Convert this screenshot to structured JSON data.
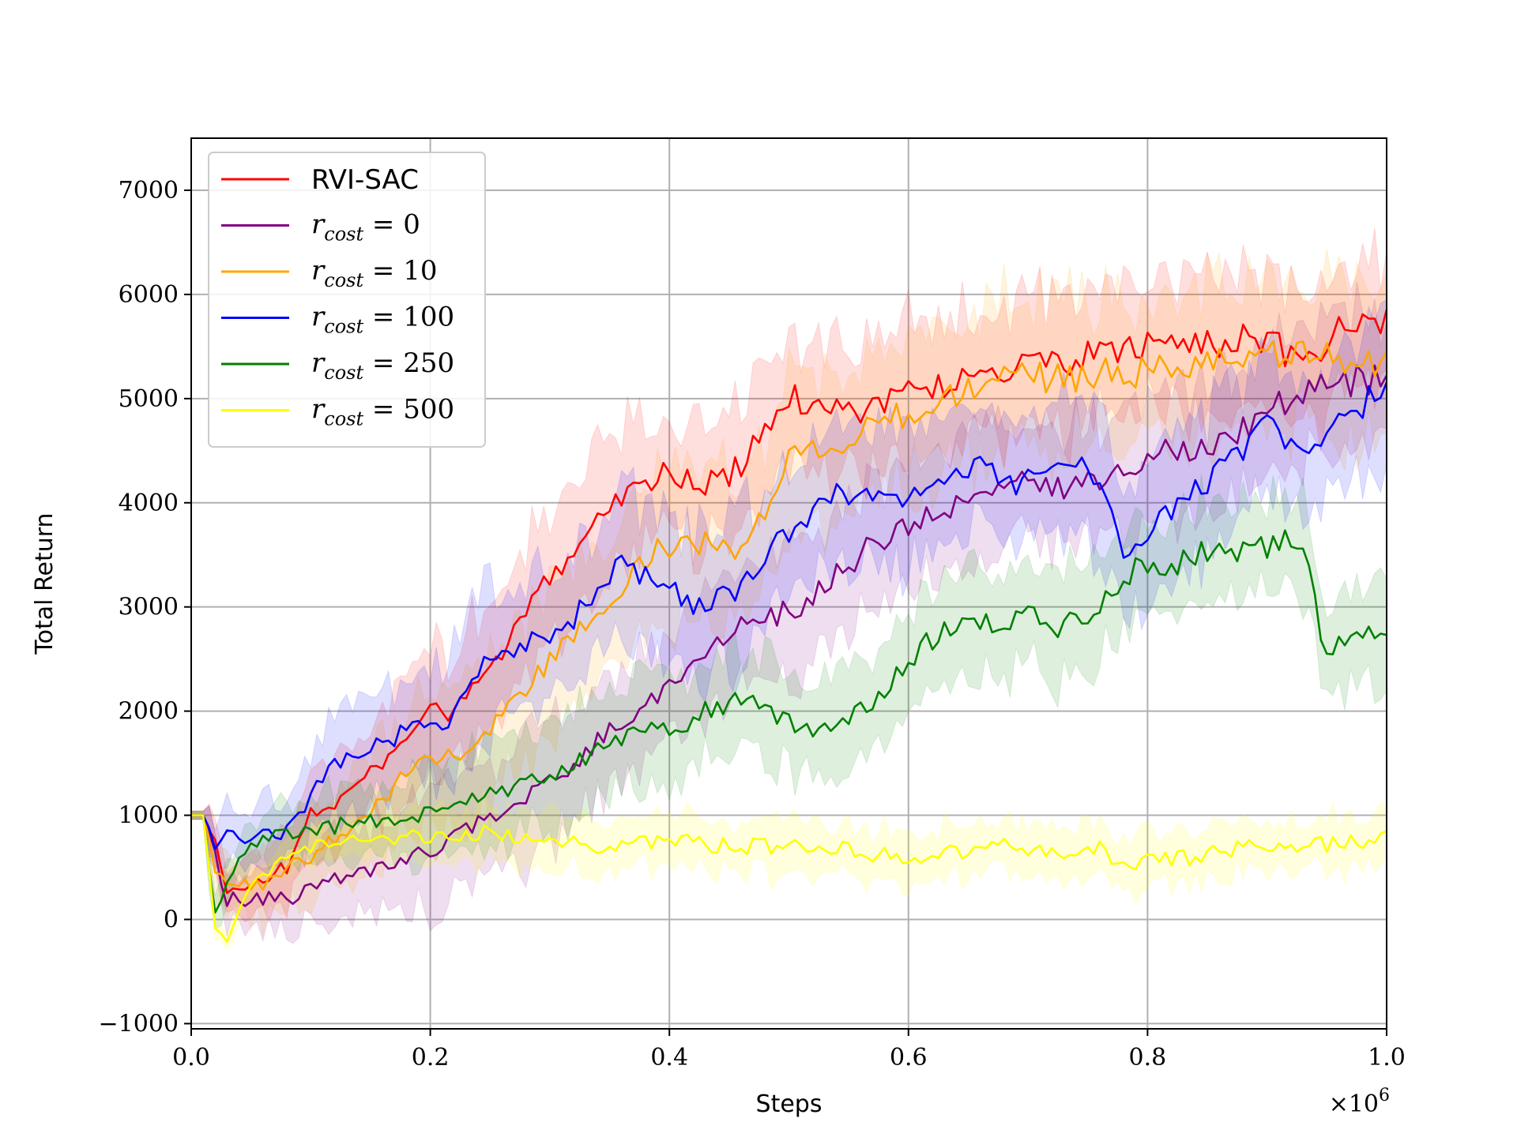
{
  "chart_data": {
    "type": "line",
    "xlabel": "Steps",
    "ylabel": "Total Return",
    "x_multiplier": {
      "base": "×10",
      "exponent": "6"
    },
    "xlim": [
      0.0,
      1.0
    ],
    "ylim": [
      -1050,
      7500
    ],
    "xticks": [
      0.0,
      0.2,
      0.4,
      0.6,
      0.8,
      1.0
    ],
    "xtick_labels": [
      "0.0",
      "0.2",
      "0.4",
      "0.6",
      "0.8",
      "1.0"
    ],
    "yticks": [
      -1000,
      0,
      1000,
      2000,
      3000,
      4000,
      5000,
      6000,
      7000
    ],
    "ytick_labels": [
      "−1000",
      "0",
      "1000",
      "2000",
      "3000",
      "4000",
      "5000",
      "6000",
      "7000"
    ],
    "grid": true,
    "legend_position": "upper-left",
    "series": [
      {
        "name": "RVI-SAC",
        "name_format": "plain",
        "color": "#ff0000",
        "band_spread": 700,
        "points": [
          [
            0,
            1000
          ],
          [
            0.01,
            1000
          ],
          [
            0.02,
            700
          ],
          [
            0.03,
            250
          ],
          [
            0.05,
            350
          ],
          [
            0.08,
            500
          ],
          [
            0.1,
            1000
          ],
          [
            0.13,
            1200
          ],
          [
            0.16,
            1500
          ],
          [
            0.19,
            1950
          ],
          [
            0.22,
            2000
          ],
          [
            0.25,
            2400
          ],
          [
            0.28,
            2900
          ],
          [
            0.3,
            3300
          ],
          [
            0.33,
            3700
          ],
          [
            0.36,
            4100
          ],
          [
            0.4,
            4300
          ],
          [
            0.43,
            4150
          ],
          [
            0.46,
            4350
          ],
          [
            0.5,
            5000
          ],
          [
            0.53,
            4950
          ],
          [
            0.56,
            4900
          ],
          [
            0.6,
            5050
          ],
          [
            0.63,
            5150
          ],
          [
            0.67,
            5250
          ],
          [
            0.7,
            5300
          ],
          [
            0.73,
            5350
          ],
          [
            0.77,
            5450
          ],
          [
            0.8,
            5500
          ],
          [
            0.83,
            5550
          ],
          [
            0.87,
            5550
          ],
          [
            0.9,
            5600
          ],
          [
            0.93,
            5250
          ],
          [
            0.96,
            5650
          ],
          [
            1.0,
            5750
          ]
        ]
      },
      {
        "name": "r_cost = 0",
        "name_format": "math",
        "var": "r",
        "sub": "cost",
        "value": "0",
        "color": "#800080",
        "band_spread": 650,
        "points": [
          [
            0,
            1000
          ],
          [
            0.01,
            1000
          ],
          [
            0.02,
            600
          ],
          [
            0.03,
            200
          ],
          [
            0.06,
            200
          ],
          [
            0.09,
            220
          ],
          [
            0.12,
            400
          ],
          [
            0.15,
            450
          ],
          [
            0.18,
            600
          ],
          [
            0.21,
            700
          ],
          [
            0.24,
            950
          ],
          [
            0.27,
            1100
          ],
          [
            0.3,
            1300
          ],
          [
            0.33,
            1600
          ],
          [
            0.36,
            1900
          ],
          [
            0.39,
            2150
          ],
          [
            0.42,
            2450
          ],
          [
            0.45,
            2750
          ],
          [
            0.48,
            2900
          ],
          [
            0.51,
            3000
          ],
          [
            0.54,
            3300
          ],
          [
            0.57,
            3600
          ],
          [
            0.6,
            3750
          ],
          [
            0.63,
            3950
          ],
          [
            0.66,
            4050
          ],
          [
            0.69,
            4200
          ],
          [
            0.72,
            4100
          ],
          [
            0.75,
            4200
          ],
          [
            0.78,
            4300
          ],
          [
            0.81,
            4500
          ],
          [
            0.84,
            4550
          ],
          [
            0.87,
            4650
          ],
          [
            0.9,
            4900
          ],
          [
            0.93,
            5050
          ],
          [
            0.96,
            5150
          ],
          [
            1.0,
            5200
          ]
        ]
      },
      {
        "name": "r_cost = 10",
        "name_format": "math",
        "var": "r",
        "sub": "cost",
        "value": "10",
        "color": "#ffa500",
        "band_spread": 800,
        "points": [
          [
            0,
            1000
          ],
          [
            0.01,
            1000
          ],
          [
            0.02,
            500
          ],
          [
            0.03,
            300
          ],
          [
            0.06,
            350
          ],
          [
            0.09,
            550
          ],
          [
            0.12,
            750
          ],
          [
            0.15,
            1050
          ],
          [
            0.18,
            1400
          ],
          [
            0.21,
            1550
          ],
          [
            0.24,
            1700
          ],
          [
            0.27,
            2100
          ],
          [
            0.3,
            2500
          ],
          [
            0.33,
            2800
          ],
          [
            0.36,
            3200
          ],
          [
            0.39,
            3550
          ],
          [
            0.42,
            3650
          ],
          [
            0.45,
            3500
          ],
          [
            0.48,
            3900
          ],
          [
            0.5,
            4500
          ],
          [
            0.53,
            4500
          ],
          [
            0.56,
            4700
          ],
          [
            0.6,
            4850
          ],
          [
            0.63,
            5000
          ],
          [
            0.67,
            5150
          ],
          [
            0.7,
            5200
          ],
          [
            0.73,
            5200
          ],
          [
            0.77,
            5250
          ],
          [
            0.8,
            5250
          ],
          [
            0.83,
            5300
          ],
          [
            0.87,
            5350
          ],
          [
            0.9,
            5400
          ],
          [
            0.93,
            5400
          ],
          [
            0.96,
            5400
          ],
          [
            1.0,
            5300
          ]
        ]
      },
      {
        "name": "r_cost = 100",
        "name_format": "math",
        "var": "r",
        "sub": "cost",
        "value": "100",
        "color": "#0000ff",
        "band_spread": 750,
        "points": [
          [
            0,
            1000
          ],
          [
            0.01,
            1000
          ],
          [
            0.02,
            600
          ],
          [
            0.03,
            800
          ],
          [
            0.05,
            750
          ],
          [
            0.08,
            850
          ],
          [
            0.1,
            1200
          ],
          [
            0.12,
            1500
          ],
          [
            0.15,
            1650
          ],
          [
            0.18,
            1800
          ],
          [
            0.21,
            1850
          ],
          [
            0.24,
            2400
          ],
          [
            0.27,
            2600
          ],
          [
            0.3,
            2700
          ],
          [
            0.33,
            3000
          ],
          [
            0.36,
            3400
          ],
          [
            0.39,
            3250
          ],
          [
            0.42,
            3000
          ],
          [
            0.45,
            3100
          ],
          [
            0.48,
            3500
          ],
          [
            0.51,
            3800
          ],
          [
            0.54,
            4050
          ],
          [
            0.57,
            4050
          ],
          [
            0.6,
            4050
          ],
          [
            0.63,
            4200
          ],
          [
            0.66,
            4350
          ],
          [
            0.69,
            4200
          ],
          [
            0.72,
            4250
          ],
          [
            0.75,
            4450
          ],
          [
            0.78,
            3500
          ],
          [
            0.81,
            3800
          ],
          [
            0.84,
            4100
          ],
          [
            0.87,
            4400
          ],
          [
            0.9,
            4750
          ],
          [
            0.93,
            4500
          ],
          [
            0.96,
            4800
          ],
          [
            1.0,
            5100
          ]
        ]
      },
      {
        "name": "r_cost = 250",
        "name_format": "math",
        "var": "r",
        "sub": "cost",
        "value": "250",
        "color": "#008000",
        "band_spread": 550,
        "points": [
          [
            0,
            1000
          ],
          [
            0.01,
            1000
          ],
          [
            0.02,
            50
          ],
          [
            0.03,
            400
          ],
          [
            0.05,
            750
          ],
          [
            0.08,
            850
          ],
          [
            0.12,
            900
          ],
          [
            0.16,
            950
          ],
          [
            0.2,
            1000
          ],
          [
            0.24,
            1150
          ],
          [
            0.28,
            1300
          ],
          [
            0.31,
            1450
          ],
          [
            0.34,
            1600
          ],
          [
            0.37,
            1800
          ],
          [
            0.4,
            1800
          ],
          [
            0.43,
            2000
          ],
          [
            0.46,
            2100
          ],
          [
            0.49,
            1950
          ],
          [
            0.52,
            1750
          ],
          [
            0.55,
            1950
          ],
          [
            0.58,
            2200
          ],
          [
            0.61,
            2600
          ],
          [
            0.64,
            2850
          ],
          [
            0.67,
            2850
          ],
          [
            0.7,
            2900
          ],
          [
            0.73,
            2800
          ],
          [
            0.76,
            3000
          ],
          [
            0.79,
            3350
          ],
          [
            0.82,
            3400
          ],
          [
            0.85,
            3550
          ],
          [
            0.88,
            3500
          ],
          [
            0.91,
            3600
          ],
          [
            0.93,
            3650
          ],
          [
            0.95,
            2500
          ],
          [
            0.97,
            2750
          ],
          [
            1.0,
            2780
          ]
        ]
      },
      {
        "name": "r_cost = 500",
        "name_format": "math",
        "var": "r",
        "sub": "cost",
        "value": "500",
        "color": "#ffff00",
        "band_spread": 280,
        "points": [
          [
            0,
            1000
          ],
          [
            0.01,
            1000
          ],
          [
            0.02,
            -150
          ],
          [
            0.03,
            -150
          ],
          [
            0.05,
            300
          ],
          [
            0.08,
            600
          ],
          [
            0.12,
            750
          ],
          [
            0.16,
            780
          ],
          [
            0.2,
            820
          ],
          [
            0.24,
            830
          ],
          [
            0.28,
            800
          ],
          [
            0.31,
            750
          ],
          [
            0.34,
            650
          ],
          [
            0.37,
            720
          ],
          [
            0.4,
            750
          ],
          [
            0.44,
            720
          ],
          [
            0.48,
            700
          ],
          [
            0.52,
            700
          ],
          [
            0.56,
            650
          ],
          [
            0.6,
            580
          ],
          [
            0.64,
            650
          ],
          [
            0.68,
            700
          ],
          [
            0.72,
            640
          ],
          [
            0.76,
            700
          ],
          [
            0.78,
            500
          ],
          [
            0.8,
            580
          ],
          [
            0.84,
            600
          ],
          [
            0.88,
            680
          ],
          [
            0.92,
            700
          ],
          [
            0.96,
            720
          ],
          [
            1.0,
            780
          ]
        ]
      }
    ]
  }
}
